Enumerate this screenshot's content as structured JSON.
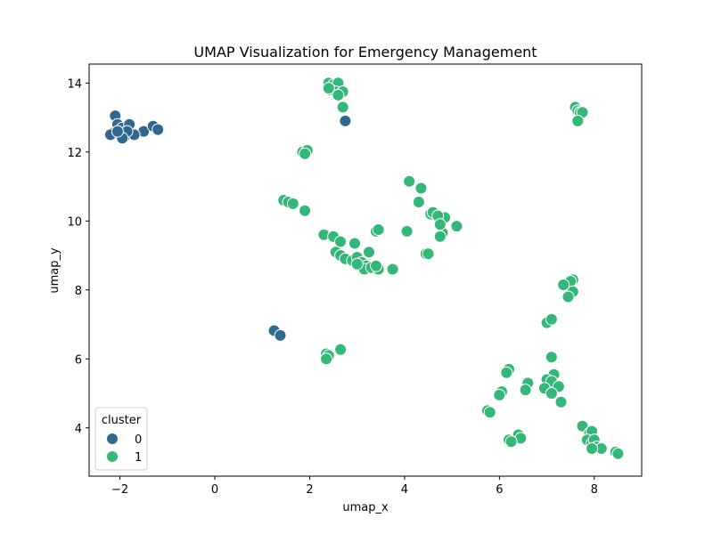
{
  "chart_data": {
    "type": "scatter",
    "title": "UMAP Visualization for Emergency Management",
    "xlabel": "umap_x",
    "ylabel": "umap_y",
    "xlim": [
      -2.65,
      9.0
    ],
    "ylim": [
      2.6,
      14.55
    ],
    "xticks": [
      -2,
      0,
      2,
      4,
      6,
      8
    ],
    "yticks": [
      4,
      6,
      8,
      10,
      12,
      14
    ],
    "grid": false,
    "legend": {
      "title": "cluster",
      "placement": "lower-left",
      "entries": [
        {
          "label": "0",
          "color": "#31688e"
        },
        {
          "label": "1",
          "color": "#35b779"
        }
      ]
    },
    "series": [
      {
        "name": "0",
        "color": "#31688e",
        "points": [
          [
            -2.1,
            13.05
          ],
          [
            -2.05,
            12.8
          ],
          [
            -1.95,
            12.7
          ],
          [
            -1.8,
            12.8
          ],
          [
            -1.5,
            12.6
          ],
          [
            -1.3,
            12.75
          ],
          [
            -1.2,
            12.65
          ],
          [
            -2.15,
            12.55
          ],
          [
            -2.0,
            12.5
          ],
          [
            -1.9,
            12.45
          ],
          [
            -1.7,
            12.5
          ],
          [
            -2.2,
            12.5
          ],
          [
            -1.85,
            12.6
          ],
          [
            -1.95,
            12.4
          ],
          [
            -2.05,
            12.6
          ],
          [
            2.75,
            12.9
          ],
          [
            1.25,
            6.82
          ],
          [
            1.38,
            6.68
          ]
        ]
      },
      {
        "name": "1",
        "color": "#35b779",
        "points": [
          [
            2.4,
            14.0
          ],
          [
            2.5,
            13.95
          ],
          [
            2.6,
            14.0
          ],
          [
            2.45,
            13.8
          ],
          [
            2.55,
            13.75
          ],
          [
            2.7,
            13.75
          ],
          [
            2.6,
            13.65
          ],
          [
            2.4,
            13.85
          ],
          [
            2.7,
            13.3
          ],
          [
            1.85,
            12.0
          ],
          [
            1.95,
            12.05
          ],
          [
            1.9,
            11.95
          ],
          [
            1.45,
            10.6
          ],
          [
            1.55,
            10.55
          ],
          [
            1.65,
            10.5
          ],
          [
            1.9,
            10.3
          ],
          [
            2.3,
            9.6
          ],
          [
            2.5,
            9.55
          ],
          [
            2.65,
            9.4
          ],
          [
            2.55,
            9.1
          ],
          [
            2.65,
            9.0
          ],
          [
            2.75,
            8.9
          ],
          [
            2.9,
            8.85
          ],
          [
            3.0,
            8.95
          ],
          [
            3.1,
            8.8
          ],
          [
            3.2,
            8.7
          ],
          [
            3.15,
            8.6
          ],
          [
            3.3,
            8.65
          ],
          [
            3.45,
            8.6
          ],
          [
            3.4,
            8.7
          ],
          [
            3.25,
            9.1
          ],
          [
            2.95,
            9.35
          ],
          [
            3.0,
            8.75
          ],
          [
            3.75,
            8.6
          ],
          [
            3.4,
            9.7
          ],
          [
            3.45,
            9.75
          ],
          [
            4.05,
            9.7
          ],
          [
            4.1,
            11.15
          ],
          [
            4.35,
            10.95
          ],
          [
            4.3,
            10.55
          ],
          [
            4.55,
            10.2
          ],
          [
            4.6,
            10.25
          ],
          [
            4.75,
            10.0
          ],
          [
            4.85,
            10.1
          ],
          [
            4.7,
            10.15
          ],
          [
            4.8,
            9.65
          ],
          [
            4.75,
            9.55
          ],
          [
            4.75,
            9.9
          ],
          [
            5.1,
            9.85
          ],
          [
            4.45,
            9.05
          ],
          [
            4.5,
            9.05
          ],
          [
            2.35,
            6.15
          ],
          [
            2.4,
            6.1
          ],
          [
            2.35,
            6.0
          ],
          [
            2.65,
            6.27
          ],
          [
            7.6,
            13.3
          ],
          [
            7.65,
            13.2
          ],
          [
            7.7,
            13.15
          ],
          [
            7.75,
            13.15
          ],
          [
            7.65,
            12.9
          ],
          [
            7.55,
            8.3
          ],
          [
            7.5,
            8.25
          ],
          [
            7.35,
            8.15
          ],
          [
            7.55,
            7.95
          ],
          [
            7.45,
            7.8
          ],
          [
            7.0,
            7.05
          ],
          [
            7.1,
            7.15
          ],
          [
            6.2,
            5.7
          ],
          [
            6.15,
            5.6
          ],
          [
            7.1,
            6.05
          ],
          [
            7.15,
            5.55
          ],
          [
            7.0,
            5.4
          ],
          [
            7.1,
            5.35
          ],
          [
            7.25,
            5.2
          ],
          [
            6.95,
            5.15
          ],
          [
            7.1,
            5.0
          ],
          [
            7.3,
            4.75
          ],
          [
            6.6,
            5.3
          ],
          [
            6.55,
            5.1
          ],
          [
            6.05,
            5.05
          ],
          [
            6.0,
            4.95
          ],
          [
            5.75,
            4.5
          ],
          [
            5.8,
            4.45
          ],
          [
            6.4,
            3.8
          ],
          [
            6.45,
            3.7
          ],
          [
            6.2,
            3.65
          ],
          [
            6.25,
            3.6
          ],
          [
            7.75,
            4.05
          ],
          [
            7.9,
            3.85
          ],
          [
            7.95,
            3.9
          ],
          [
            7.85,
            3.65
          ],
          [
            7.95,
            3.55
          ],
          [
            8.0,
            3.65
          ],
          [
            8.05,
            3.45
          ],
          [
            8.15,
            3.4
          ],
          [
            7.95,
            3.4
          ],
          [
            8.45,
            3.3
          ],
          [
            8.5,
            3.25
          ]
        ]
      }
    ]
  }
}
